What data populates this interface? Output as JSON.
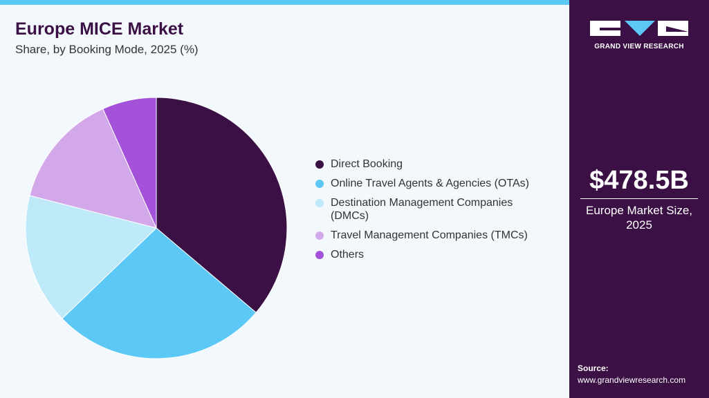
{
  "chart_data": {
    "type": "pie",
    "title": "Europe MICE Market",
    "subtitle": "Share, by Booking Mode, 2025 (%)",
    "categories": [
      "Direct Booking",
      "Online Travel Agents & Agencies (OTAs)",
      "Destination Management Companies (DMCs)",
      "Travel Management Companies (TMCs)",
      "Others"
    ],
    "values": [
      36.2,
      26.6,
      16.2,
      14.3,
      6.7
    ],
    "colors": [
      "#3a1045",
      "#5bc8f5",
      "#bde9f9",
      "#d3a8ea",
      "#a352d9"
    ]
  },
  "sidebar": {
    "logo_text": "GRAND VIEW RESEARCH",
    "market_size": "$478.5B",
    "market_size_label": "Europe Market Size, 2025",
    "source_label": "Source:",
    "source_url": "www.grandviewresearch.com"
  }
}
